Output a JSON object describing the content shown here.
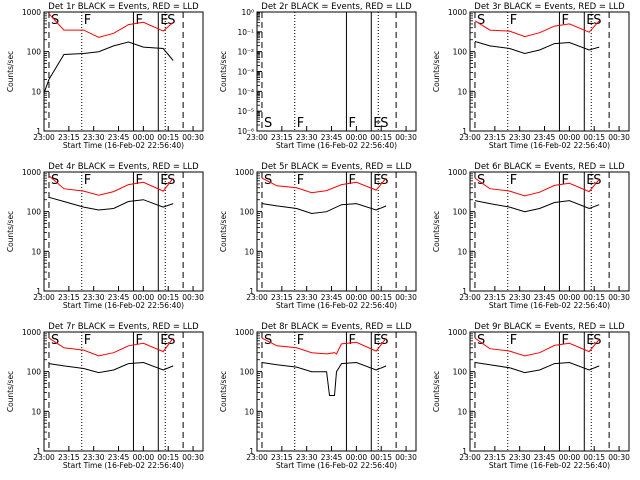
{
  "chart_data": [
    {
      "type": "line",
      "title": "Det 1r BLACK = Events, RED = LLD",
      "xlabel": "Start Time (16-Feb-02 22:56:40)",
      "ylabel": "Counts/sec",
      "xticks": [
        "23:00",
        "23:15",
        "23:30",
        "23:45",
        "00:00",
        "00:15",
        "00:30"
      ],
      "yticks": [
        "1",
        "10",
        "100",
        "1000"
      ],
      "ylog": true,
      "flare_markers": [
        "S",
        "F",
        "F",
        "E",
        "S"
      ],
      "series": [
        {
          "color": "#ff0000",
          "x": [
            23.05,
            23.2,
            23.4,
            23.55,
            23.7,
            23.85,
            24.0,
            24.2,
            24.3
          ],
          "y": [
            900,
            350,
            350,
            230,
            290,
            480,
            550,
            330,
            550
          ]
        },
        {
          "color": "#000000",
          "x": [
            23.0,
            23.05,
            23.2,
            23.4,
            23.55,
            23.7,
            23.85,
            24.0,
            24.2,
            24.3
          ],
          "y": [
            9,
            20,
            85,
            90,
            100,
            140,
            175,
            130,
            120,
            60
          ]
        }
      ]
    },
    {
      "type": "line",
      "title": "Det 2r BLACK = Events, RED = LLD",
      "xlabel": "Start Time (16-Feb-02 22:56:40)",
      "ylabel": "Counts/sec",
      "xticks": [
        "23:00",
        "23:15",
        "23:30",
        "23:45",
        "00:00",
        "00:15",
        "00:30"
      ],
      "yticks": [
        "10⁻⁶",
        "10⁻⁵",
        "10⁻⁴",
        "10⁻³",
        "10⁻²",
        "10⁻¹",
        "10⁰"
      ],
      "ylog": true,
      "flare_markers": [
        "S",
        "F",
        "F",
        "E",
        "S"
      ],
      "series": []
    },
    {
      "type": "line",
      "title": "Det 3r BLACK = Events, RED = LLD",
      "xlabel": "Start Time (16-Feb-02 22:56:40)",
      "ylabel": "Counts/sec",
      "xticks": [
        "23:00",
        "23:15",
        "23:30",
        "23:45",
        "00:00",
        "00:15",
        "00:30"
      ],
      "yticks": [
        "1",
        "10",
        "100",
        "1000"
      ],
      "ylog": true,
      "flare_markers": [
        "S",
        "F",
        "F",
        "E",
        "S"
      ],
      "series": [
        {
          "color": "#ff0000",
          "x": [
            23.05,
            23.2,
            23.4,
            23.55,
            23.7,
            23.85,
            24.0,
            24.2,
            24.3
          ],
          "y": [
            600,
            350,
            330,
            240,
            300,
            440,
            500,
            310,
            600
          ]
        },
        {
          "color": "#000000",
          "x": [
            23.05,
            23.2,
            23.4,
            23.55,
            23.7,
            23.85,
            24.0,
            24.2,
            24.3
          ],
          "y": [
            180,
            140,
            120,
            90,
            110,
            160,
            170,
            110,
            130
          ]
        }
      ]
    },
    {
      "type": "line",
      "title": "Det 4r BLACK = Events, RED = LLD",
      "xlabel": "Start Time (16-Feb-02 22:56:40)",
      "ylabel": "Counts/sec",
      "xticks": [
        "23:00",
        "23:15",
        "23:30",
        "23:45",
        "00:00",
        "00:15",
        "00:30"
      ],
      "yticks": [
        "1",
        "10",
        "100",
        "1000"
      ],
      "ylog": true,
      "flare_markers": [
        "S",
        "F",
        "F",
        "E",
        "S"
      ],
      "series": [
        {
          "color": "#ff0000",
          "x": [
            23.05,
            23.2,
            23.4,
            23.55,
            23.7,
            23.85,
            24.0,
            24.2,
            24.3
          ],
          "y": [
            800,
            380,
            330,
            260,
            320,
            480,
            550,
            330,
            700
          ]
        },
        {
          "color": "#000000",
          "x": [
            23.05,
            23.2,
            23.4,
            23.55,
            23.7,
            23.85,
            24.0,
            24.2,
            24.3
          ],
          "y": [
            230,
            180,
            130,
            110,
            120,
            180,
            200,
            130,
            160
          ]
        }
      ]
    },
    {
      "type": "line",
      "title": "Det 5r BLACK = Events, RED = LLD",
      "xlabel": "Start Time (16-Feb-02 22:56:40)",
      "ylabel": "Counts/sec",
      "xticks": [
        "23:00",
        "23:15",
        "23:30",
        "23:45",
        "00:00",
        "00:15",
        "00:30"
      ],
      "yticks": [
        "1",
        "10",
        "100",
        "1000"
      ],
      "ylog": true,
      "flare_markers": [
        "S",
        "F",
        "F",
        "E",
        "S"
      ],
      "series": [
        {
          "color": "#ff0000",
          "x": [
            23.05,
            23.2,
            23.4,
            23.55,
            23.7,
            23.85,
            24.0,
            24.2,
            24.3
          ],
          "y": [
            700,
            450,
            400,
            300,
            340,
            480,
            550,
            350,
            700
          ]
        },
        {
          "color": "#000000",
          "x": [
            23.05,
            23.2,
            23.4,
            23.55,
            23.7,
            23.85,
            24.0,
            24.2,
            24.3
          ],
          "y": [
            160,
            140,
            120,
            90,
            100,
            150,
            160,
            110,
            140
          ]
        }
      ]
    },
    {
      "type": "line",
      "title": "Det 6r BLACK = Events, RED = LLD",
      "xlabel": "Start Time (16-Feb-02 22:56:40)",
      "ylabel": "Counts/sec",
      "xticks": [
        "23:00",
        "23:15",
        "23:30",
        "23:45",
        "00:00",
        "00:15",
        "00:30"
      ],
      "yticks": [
        "1",
        "10",
        "100",
        "1000"
      ],
      "ylog": true,
      "flare_markers": [
        "S",
        "F",
        "F",
        "E",
        "S"
      ],
      "series": [
        {
          "color": "#ff0000",
          "x": [
            23.05,
            23.2,
            23.4,
            23.55,
            23.7,
            23.85,
            24.0,
            24.2,
            24.3
          ],
          "y": [
            700,
            380,
            330,
            250,
            310,
            460,
            520,
            320,
            650
          ]
        },
        {
          "color": "#000000",
          "x": [
            23.05,
            23.2,
            23.4,
            23.55,
            23.7,
            23.85,
            24.0,
            24.2,
            24.3
          ],
          "y": [
            190,
            160,
            130,
            100,
            120,
            170,
            190,
            120,
            150
          ]
        }
      ]
    },
    {
      "type": "line",
      "title": "Det 7r BLACK = Events, RED = LLD",
      "xlabel": "Start Time (16-Feb-02 22:56:40)",
      "ylabel": "Counts/sec",
      "xticks": [
        "23:00",
        "23:15",
        "23:30",
        "23:45",
        "00:00",
        "00:15",
        "00:30"
      ],
      "yticks": [
        "1",
        "10",
        "100",
        "1000"
      ],
      "ylog": true,
      "flare_markers": [
        "S",
        "F",
        "F",
        "E",
        "S"
      ],
      "series": [
        {
          "color": "#ff0000",
          "x": [
            23.05,
            23.2,
            23.4,
            23.55,
            23.7,
            23.85,
            24.0,
            24.2,
            24.3
          ],
          "y": [
            700,
            400,
            350,
            250,
            300,
            450,
            520,
            320,
            700
          ]
        },
        {
          "color": "#000000",
          "x": [
            23.05,
            23.2,
            23.4,
            23.55,
            23.7,
            23.85,
            24.0,
            24.2,
            24.3
          ],
          "y": [
            160,
            140,
            120,
            95,
            110,
            160,
            170,
            110,
            140
          ]
        }
      ]
    },
    {
      "type": "line",
      "title": "Det 8r BLACK = Events, RED = LLD",
      "xlabel": "Start Time (16-Feb-02 22:56:40)",
      "ylabel": "Counts/sec",
      "xticks": [
        "23:00",
        "23:15",
        "23:30",
        "23:45",
        "00:00",
        "00:15",
        "00:30"
      ],
      "yticks": [
        "1",
        "10",
        "100",
        "1000"
      ],
      "ylog": true,
      "flare_markers": [
        "S",
        "F",
        "F",
        "E",
        "S"
      ],
      "series": [
        {
          "color": "#ff0000",
          "x": [
            23.05,
            23.2,
            23.4,
            23.55,
            23.7,
            23.78,
            23.8,
            23.85,
            24.0,
            24.2,
            24.3
          ],
          "y": [
            700,
            450,
            400,
            300,
            280,
            300,
            280,
            500,
            550,
            330,
            700
          ]
        },
        {
          "color": "#000000",
          "x": [
            23.05,
            23.2,
            23.4,
            23.55,
            23.7,
            23.73,
            23.78,
            23.8,
            23.85,
            24.0,
            24.2,
            24.3
          ],
          "y": [
            170,
            150,
            130,
            100,
            100,
            25,
            25,
            100,
            160,
            170,
            110,
            140
          ]
        }
      ]
    },
    {
      "type": "line",
      "title": "Det 9r BLACK = Events, RED = LLD",
      "xlabel": "Start Time (16-Feb-02 22:56:40)",
      "ylabel": "Counts/sec",
      "xticks": [
        "23:00",
        "23:15",
        "23:30",
        "23:45",
        "00:00",
        "00:15",
        "00:30"
      ],
      "yticks": [
        "1",
        "10",
        "100",
        "1000"
      ],
      "ylog": true,
      "flare_markers": [
        "S",
        "F",
        "F",
        "E",
        "S"
      ],
      "series": [
        {
          "color": "#ff0000",
          "x": [
            23.05,
            23.2,
            23.4,
            23.55,
            23.7,
            23.85,
            24.0,
            24.2,
            24.3
          ],
          "y": [
            700,
            380,
            330,
            250,
            300,
            460,
            520,
            320,
            650
          ]
        },
        {
          "color": "#000000",
          "x": [
            23.05,
            23.2,
            23.4,
            23.55,
            23.7,
            23.85,
            24.0,
            24.2,
            24.3
          ],
          "y": [
            170,
            150,
            125,
            95,
            110,
            160,
            170,
            110,
            140
          ]
        }
      ]
    }
  ]
}
